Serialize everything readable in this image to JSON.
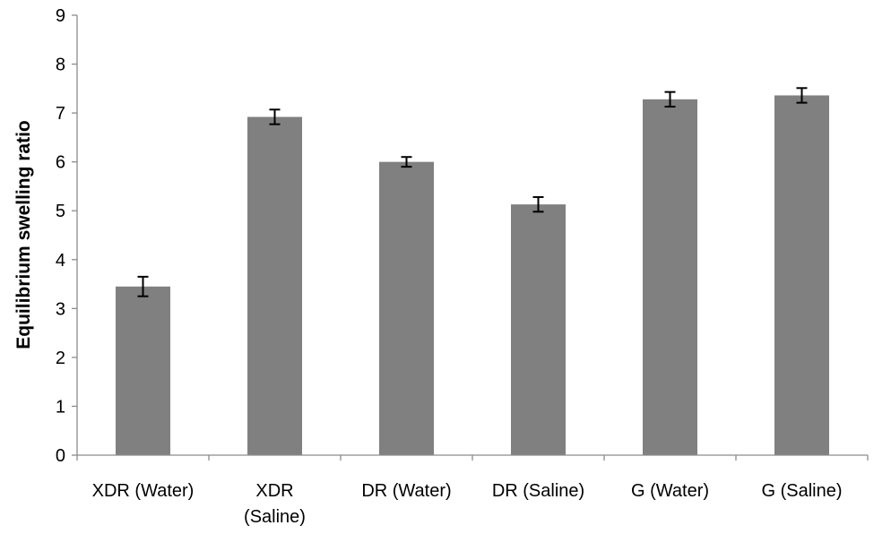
{
  "chart_data": {
    "type": "bar",
    "title": "",
    "xlabel": "",
    "ylabel": "Equilibrium swelling ratio",
    "ylim": [
      0,
      9
    ],
    "yticks": [
      0,
      1,
      2,
      3,
      4,
      5,
      6,
      7,
      8,
      9
    ],
    "categories": [
      [
        "XDR (Water)"
      ],
      [
        "XDR",
        "(Saline)"
      ],
      [
        "DR (Water)"
      ],
      [
        "DR (Saline)"
      ],
      [
        "G (Water)"
      ],
      [
        "G (Saline)"
      ]
    ],
    "values": [
      3.45,
      6.92,
      6.0,
      5.13,
      7.28,
      7.36
    ],
    "error_bars": [
      0.2,
      0.15,
      0.1,
      0.15,
      0.15,
      0.15
    ],
    "bar_color": "#808080",
    "grid": false,
    "legend": "none"
  }
}
